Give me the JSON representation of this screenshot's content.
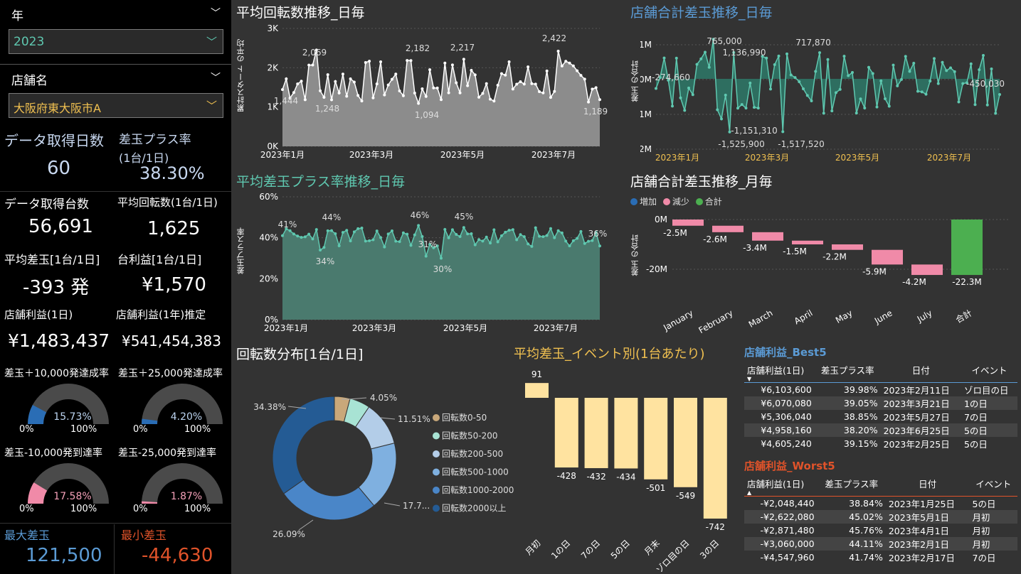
{
  "filters": {
    "year_label": "年",
    "year_value": "2023",
    "store_label": "店舗名",
    "store_value": "大阪府東大阪市A"
  },
  "kpis": {
    "days_label": "データ取得日数",
    "days_value": "60",
    "plus_rate_label": "差玉プラス率",
    "plus_rate_sub": "(1台/1日)",
    "plus_rate_value": "38.30%",
    "machines_label": "データ取得台数",
    "machines_value": "56,691",
    "avg_spins_label": "平均回転数(1台/1日)",
    "avg_spins_value": "1,625",
    "avg_diff_label": "平均差玉[1台/1日]",
    "avg_diff_value": "-393 発",
    "machine_profit_label": "台利益[1台/1日]",
    "machine_profit_value": "¥1,570",
    "store_profit_label": "店舗利益(1日)",
    "store_profit_value": "¥1,483,437",
    "store_profit_year_label": "店舗利益(1年)推定",
    "store_profit_year_value": "¥541,454,383",
    "max_diff_label": "最大差玉",
    "max_diff_value": "121,500",
    "min_diff_label": "最小差玉",
    "min_diff_value": "-44,630"
  },
  "gauges": [
    {
      "label": "差玉＋10,000発達成率",
      "value_text": "15.73%",
      "value": 0.1573,
      "color": "#2a6db5",
      "min": "0%",
      "max": "100%"
    },
    {
      "label": "差玉＋25,000発達成率",
      "value_text": "4.20%",
      "value": 0.042,
      "color": "#2a6db5",
      "min": "0%",
      "max": "100%"
    },
    {
      "label": "差玉-10,000発到達率",
      "value_text": "17.58%",
      "value": 0.1758,
      "color": "#f08aa8",
      "min": "0%",
      "max": "100%"
    },
    {
      "label": "差玉-25,000発到達率",
      "value_text": "1.87%",
      "value": 0.0187,
      "color": "#f08aa8",
      "min": "0%",
      "max": "100%"
    }
  ],
  "colors": {
    "teal": "#5fc8b0",
    "gold": "#f0c050",
    "blue": "#5b9bd5",
    "red": "#e0532a",
    "pink": "#f08aa8",
    "green": "#4caf50"
  },
  "chart1": {
    "title": "平均回転数推移_日毎",
    "ylabel": "累計スタート の平均",
    "yticks": [
      "3K",
      "2K",
      "1K",
      "0K"
    ],
    "xticks": [
      "2023年1月",
      "2023年3月",
      "2023年5月",
      "2023年7月"
    ],
    "labels": [
      "1,444",
      "2,069",
      "1,248",
      "2,182",
      "1,094",
      "2,217",
      "2,422",
      "1,189"
    ]
  },
  "chart2": {
    "title": "店舗合計差玉推移_日毎",
    "ylabel": "差玉 の合計",
    "yticks": [
      "1M",
      "0M",
      "-1M",
      "-2M"
    ],
    "xticks": [
      "2023年1月",
      "2023年3月",
      "2023年5月",
      "2023年7月"
    ],
    "labels": [
      "-274,660",
      "765,000",
      "1,136,990",
      "717,870",
      "-1,151,310",
      "-1,525,900",
      "-1,517,520",
      "-450,030"
    ]
  },
  "chart3": {
    "title": "平均差玉プラス率推移_日毎",
    "ylabel": "差玉プラス率",
    "yticks": [
      "60%",
      "40%",
      "20%",
      "0%"
    ],
    "xticks": [
      "2023年1月",
      "2023年3月",
      "2023年5月",
      "2023年7月"
    ],
    "labels": [
      "41%",
      "44%",
      "34%",
      "46%",
      "31%",
      "30%",
      "45%",
      "36%"
    ]
  },
  "chart4": {
    "title": "店舗合計差玉推移_月毎",
    "ylabel": "差玉 の合計",
    "legend": [
      "増加",
      "減少",
      "合計"
    ],
    "yticks": [
      "0M",
      "-20M"
    ],
    "chart_data": {
      "type": "bar",
      "categories": [
        "January",
        "February",
        "March",
        "April",
        "May",
        "June",
        "July",
        "合計"
      ],
      "values": [
        -2.5,
        -2.6,
        -3.4,
        -1.5,
        -2.2,
        -5.9,
        -4.2,
        -22.3
      ],
      "labels": [
        "-2.5M",
        "-2.6M",
        "-3.4M",
        "-1.5M",
        "-2.2M",
        "-5.9M",
        "-4.2M",
        "-22.3M"
      ]
    }
  },
  "chart5": {
    "title": "回転数分布[1台/1日]",
    "chart_data": {
      "type": "pie",
      "categories": [
        "回転数0-50",
        "回転数50-200",
        "回転数200-500",
        "回転数500-1000",
        "回転数1000-2000",
        "回転数2000以上"
      ],
      "values": [
        4.05,
        5.3,
        11.51,
        17.7,
        26.09,
        34.38
      ],
      "colors": [
        "#c9a87a",
        "#a8e3d4",
        "#b3cde8",
        "#7fb0e0",
        "#4a86c8",
        "#245b94"
      ]
    },
    "labels": [
      "4.05%",
      "11.51%",
      "17.7...",
      "26.09%",
      "34.38%"
    ]
  },
  "chart6": {
    "title": "平均差玉_イベント別(1台あたり)",
    "chart_data": {
      "type": "bar",
      "categories": [
        "月初",
        "1の日",
        "7の日",
        "5の日",
        "月末",
        "ゾロ目の日",
        "3の日"
      ],
      "values": [
        91,
        -428,
        -432,
        -434,
        -501,
        -549,
        -742
      ]
    }
  },
  "best5": {
    "title": "店舗利益_Best5",
    "headers": [
      "店舗利益(1日)",
      "差玉プラス率",
      "日付",
      "イベント"
    ],
    "rows": [
      [
        "¥6,103,600",
        "39.98%",
        "2023年2月11日",
        "ゾロ目の日"
      ],
      [
        "¥6,070,080",
        "39.05%",
        "2023年3月21日",
        "1の日"
      ],
      [
        "¥5,306,040",
        "38.85%",
        "2023年5月27日",
        "7の日"
      ],
      [
        "¥4,958,160",
        "38.20%",
        "2023年6月25日",
        "5の日"
      ],
      [
        "¥4,605,240",
        "39.15%",
        "2023年2月25日",
        "5の日"
      ]
    ]
  },
  "worst5": {
    "title": "店舗利益_Worst5",
    "headers": [
      "店舗利益(1日)",
      "差玉プラス率",
      "日付",
      "イベント"
    ],
    "rows": [
      [
        "-¥2,048,440",
        "38.84%",
        "2023年1月25日",
        "5の日"
      ],
      [
        "-¥2,622,080",
        "45.02%",
        "2023年5月1日",
        "月初"
      ],
      [
        "-¥2,871,480",
        "45.76%",
        "2023年4月1日",
        "月初"
      ],
      [
        "-¥3,060,000",
        "44.11%",
        "2023年2月1日",
        "月初"
      ],
      [
        "-¥4,547,960",
        "41.74%",
        "2023年2月17日",
        "7の日"
      ]
    ]
  }
}
